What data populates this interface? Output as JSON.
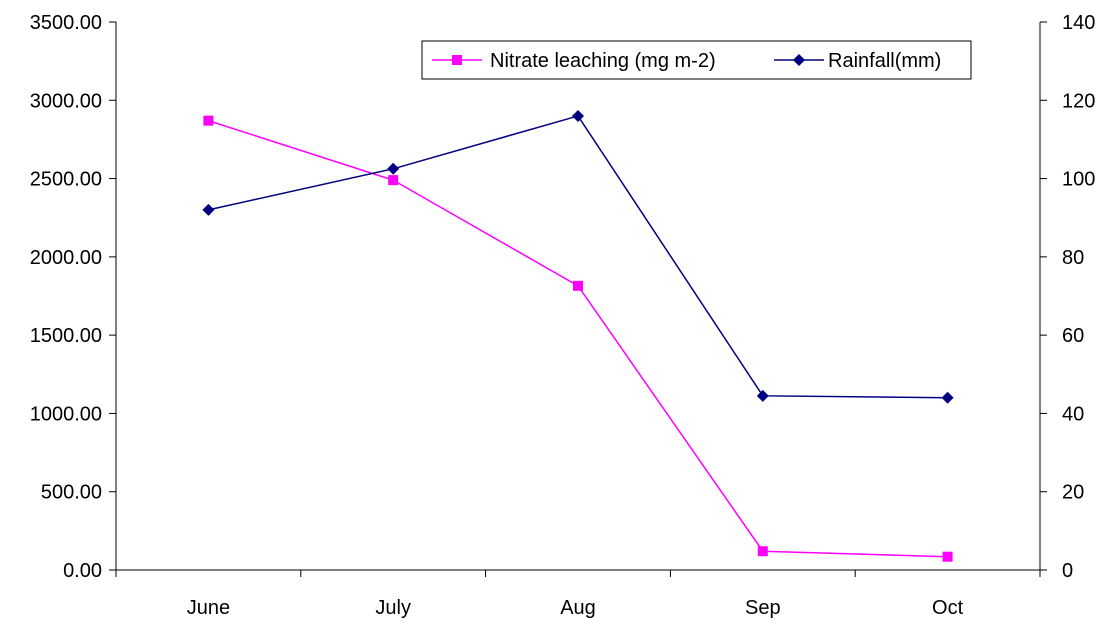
{
  "chart_data": {
    "type": "line",
    "categories": [
      "June",
      "July",
      "Aug",
      "Sep",
      "Oct"
    ],
    "series": [
      {
        "name": "Nitrate leaching (mg m-2)",
        "axis": "left",
        "color": "#FF00FF",
        "marker": "square",
        "values": [
          2870,
          2490,
          1815,
          120,
          85
        ]
      },
      {
        "name": "Rainfall(mm)",
        "axis": "right",
        "color": "#000080",
        "marker": "diamond",
        "values": [
          92,
          102.5,
          116,
          44.5,
          44
        ]
      }
    ],
    "y_left": {
      "lim": [
        0,
        3500
      ],
      "ticks": [
        "0.00",
        "500.00",
        "1000.00",
        "1500.00",
        "2000.00",
        "2500.00",
        "3000.00",
        "3500.00"
      ]
    },
    "y_right": {
      "lim": [
        0,
        140
      ],
      "ticks": [
        "0",
        "20",
        "40",
        "60",
        "80",
        "100",
        "120",
        "140"
      ]
    },
    "grid": false,
    "legend_position": "top-right"
  }
}
